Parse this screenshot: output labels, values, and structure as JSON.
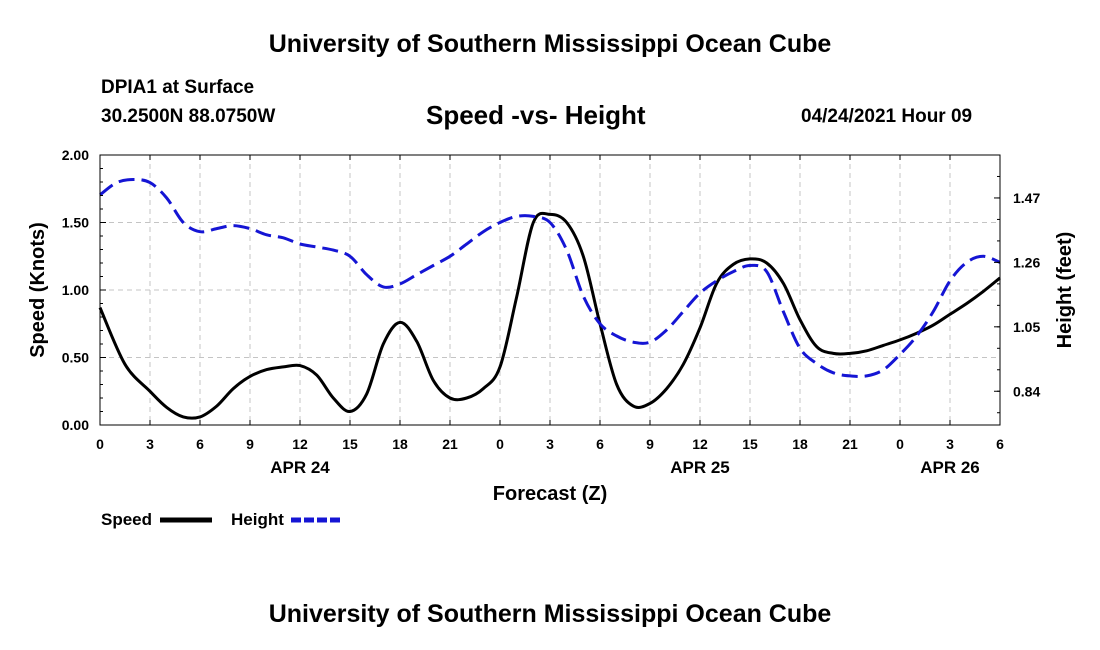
{
  "page": {
    "title_top": "University of Southern Mississippi Ocean Cube",
    "title_bottom": "University of Southern Mississippi Ocean Cube",
    "station": "DPIA1 at Surface",
    "coords": "30.2500N  88.0750W",
    "chart_title": "Speed -vs- Height",
    "datetime": "04/24/2021 Hour 09"
  },
  "chart_data": {
    "type": "line",
    "title": "Speed -vs- Height",
    "xlabel": "Forecast (Z)",
    "ylabel_left": "Speed (Knots)",
    "ylabel_right": "Height (feet)",
    "x_range_hours": [
      0,
      54
    ],
    "x_tick_labels": [
      "0",
      "3",
      "6",
      "9",
      "12",
      "15",
      "18",
      "21",
      "0",
      "3",
      "6",
      "9",
      "12",
      "15",
      "18",
      "21",
      "0",
      "3",
      "6"
    ],
    "date_labels": [
      {
        "label": "APR 24",
        "hour": 12
      },
      {
        "label": "APR 25",
        "hour": 36
      },
      {
        "label": "APR 26",
        "hour": 51
      }
    ],
    "ylim_left": [
      0,
      2.0
    ],
    "y_ticks_left": [
      "0.00",
      "0.50",
      "1.00",
      "1.50",
      "2.00"
    ],
    "y_tick_values_left": [
      0,
      0.5,
      1.0,
      1.5,
      2.0
    ],
    "ylim_right": [
      0.73,
      1.61
    ],
    "y_ticks_right": [
      "0.84",
      "1.05",
      "1.26",
      "1.47"
    ],
    "y_tick_values_right": [
      0.84,
      1.05,
      1.26,
      1.47
    ],
    "grid": true,
    "legend": [
      {
        "name": "Speed",
        "color": "#000000",
        "dash": false
      },
      {
        "name": "Height",
        "color": "#1515d4",
        "dash": true
      }
    ],
    "series": [
      {
        "name": "Speed",
        "axis": "left",
        "color": "#000000",
        "x": [
          0,
          1.5,
          3,
          4,
          5,
          6,
          7,
          8,
          9,
          10,
          11,
          12,
          13,
          14,
          15,
          16,
          17,
          18,
          19,
          20,
          21,
          22,
          23,
          24,
          25,
          26,
          27,
          28,
          29,
          30,
          31,
          32,
          33,
          34,
          35,
          36,
          37,
          38,
          39,
          40,
          41,
          42,
          43,
          44,
          45,
          46,
          47,
          48,
          49,
          50,
          51,
          52,
          53,
          54
        ],
        "values": [
          0.87,
          0.45,
          0.25,
          0.13,
          0.06,
          0.06,
          0.14,
          0.27,
          0.36,
          0.41,
          0.43,
          0.44,
          0.37,
          0.2,
          0.1,
          0.23,
          0.6,
          0.76,
          0.62,
          0.33,
          0.2,
          0.2,
          0.27,
          0.43,
          0.95,
          1.5,
          1.56,
          1.5,
          1.25,
          0.75,
          0.3,
          0.14,
          0.16,
          0.27,
          0.45,
          0.72,
          1.05,
          1.19,
          1.23,
          1.2,
          1.05,
          0.78,
          0.58,
          0.53,
          0.53,
          0.55,
          0.59,
          0.63,
          0.68,
          0.74,
          0.82,
          0.9,
          0.99,
          1.09
        ]
      },
      {
        "name": "Height",
        "axis": "right",
        "color": "#1515d4",
        "x": [
          0,
          1,
          2,
          3,
          4,
          5,
          6,
          7,
          8,
          9,
          10,
          11,
          12,
          13,
          14,
          15,
          16,
          17,
          18,
          19,
          20,
          21,
          22,
          23,
          24,
          25,
          26,
          27,
          28,
          29,
          30,
          31,
          32,
          33,
          34,
          35,
          36,
          37,
          38,
          39,
          40,
          41,
          42,
          43,
          44,
          45,
          46,
          47,
          48,
          49,
          50,
          51,
          52,
          53,
          54
        ],
        "values": [
          1.48,
          1.52,
          1.53,
          1.52,
          1.47,
          1.39,
          1.36,
          1.37,
          1.38,
          1.37,
          1.35,
          1.34,
          1.32,
          1.31,
          1.3,
          1.28,
          1.22,
          1.18,
          1.19,
          1.22,
          1.25,
          1.28,
          1.32,
          1.36,
          1.39,
          1.41,
          1.41,
          1.39,
          1.3,
          1.15,
          1.06,
          1.02,
          1.0,
          1.0,
          1.04,
          1.1,
          1.16,
          1.2,
          1.23,
          1.25,
          1.23,
          1.1,
          0.98,
          0.93,
          0.9,
          0.89,
          0.89,
          0.91,
          0.96,
          1.02,
          1.1,
          1.2,
          1.26,
          1.28,
          1.26
        ]
      }
    ]
  }
}
